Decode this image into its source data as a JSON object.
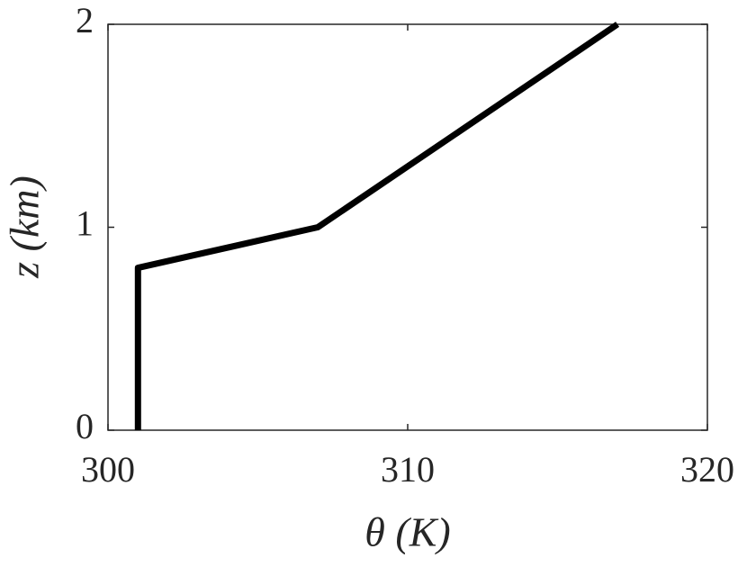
{
  "chart_data": {
    "type": "line",
    "x_label": "θ (K)",
    "y_label": "z (km)",
    "x": [
      301,
      301,
      307,
      317
    ],
    "values": [
      0,
      0.8,
      1,
      2
    ],
    "color": "#000000",
    "xlim": [
      300,
      320
    ],
    "xticks": [
      300,
      310,
      320
    ],
    "ylim": [
      0,
      2
    ],
    "yticks": [
      0,
      1,
      2
    ],
    "grid": false
  }
}
